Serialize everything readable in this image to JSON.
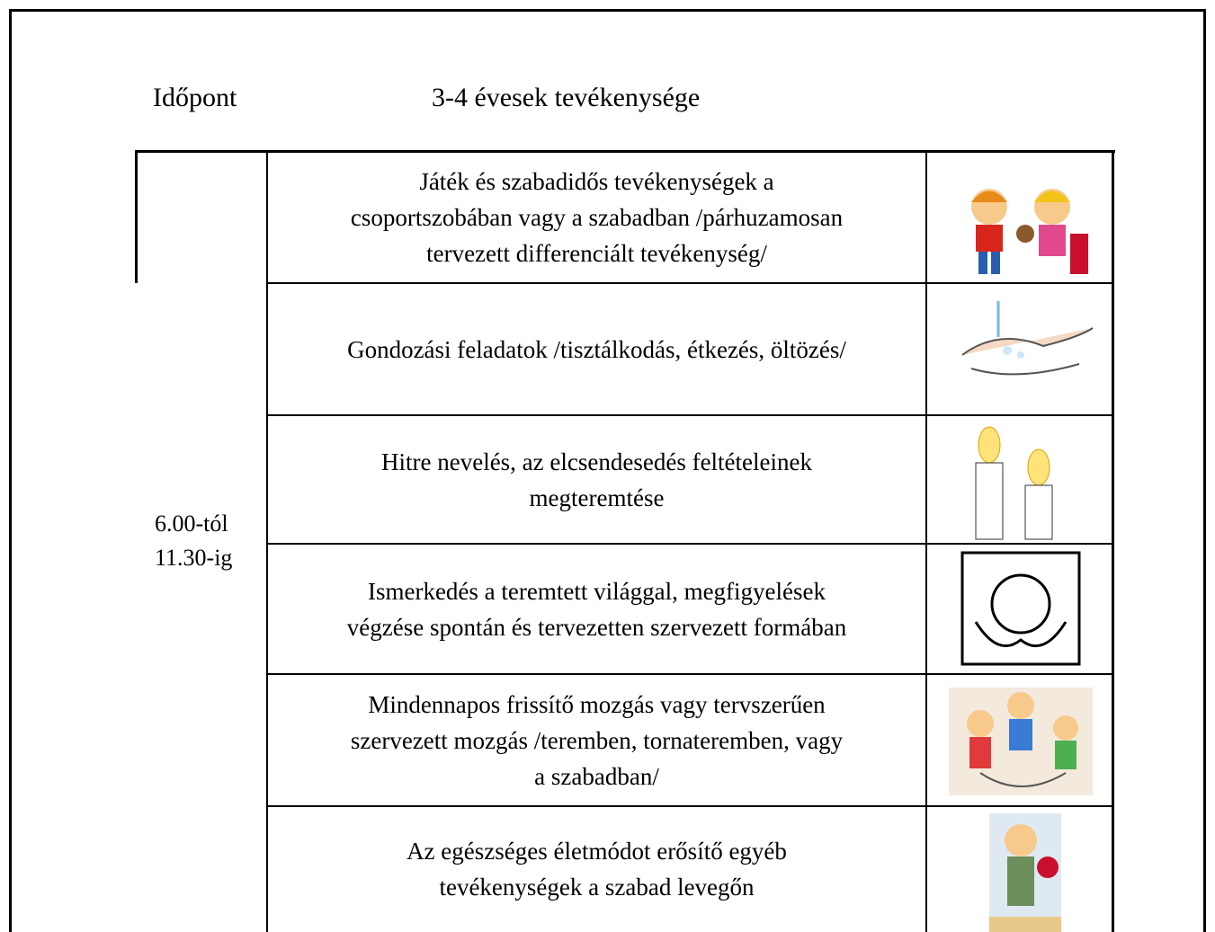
{
  "header": {
    "time": "Időpont",
    "activity": "3-4 évesek tevékenysége"
  },
  "time_range": [
    "6.00-tól",
    "11.30-ig"
  ],
  "rows": [
    {
      "lines": [
        "Játék és szabadidős tevékenységek a",
        "csoportszobában vagy a szabadban /párhuzamosan",
        "tervezett differenciált tevékenység/"
      ]
    },
    {
      "lines": [
        "Gondozási feladatok /tisztálkodás, étkezés, öltözés/"
      ]
    },
    {
      "lines": [
        "Hitre nevelés, az elcsendesedés feltételeinek",
        "megteremtése"
      ]
    },
    {
      "lines": [
        "Ismerkedés a teremtett világgal, megfigyelések",
        "végzése spontán és tervezetten szervezett formában"
      ]
    },
    {
      "lines": [
        "Mindennapos frissítő mozgás vagy tervszerűen",
        "szervezett mozgás /teremben, tornateremben, vagy",
        "a szabadban/"
      ]
    },
    {
      "lines": [
        "Az egészséges életmódot erősítő egyéb",
        "tevékenységek a szabad levegőn"
      ]
    }
  ]
}
